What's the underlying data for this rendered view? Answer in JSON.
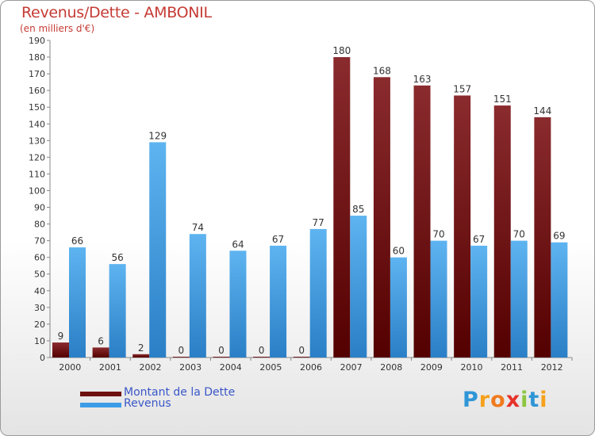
{
  "chart_data": {
    "type": "bar",
    "title": "Revenus/Dette - AMBONIL",
    "subtitle": "(en milliers d'€)",
    "categories": [
      "2000",
      "2001",
      "2002",
      "2003",
      "2004",
      "2005",
      "2006",
      "2007",
      "2008",
      "2009",
      "2010",
      "2011",
      "2012"
    ],
    "series": [
      {
        "name": "Montant de la Dette",
        "color": "#6e1010",
        "values": [
          9,
          6,
          2,
          0,
          0,
          0,
          0,
          180,
          168,
          163,
          157,
          151,
          144
        ]
      },
      {
        "name": "Revenus",
        "color": "#3d9ce6",
        "values": [
          66,
          56,
          129,
          74,
          64,
          67,
          77,
          85,
          60,
          70,
          67,
          70,
          69
        ]
      }
    ],
    "ylim": [
      0,
      190
    ],
    "ytick_step": 10,
    "grid": false,
    "legend": "bottom-left"
  },
  "branding": {
    "logo_letters": [
      "P",
      "r",
      "o",
      "x",
      "i",
      "t",
      "i"
    ],
    "logo_colors": [
      "#2f96d6",
      "#f5a11c",
      "#f07b1e",
      "#e7322a",
      "#8cc63f",
      "#2f96d6",
      "#f5a11c"
    ]
  }
}
